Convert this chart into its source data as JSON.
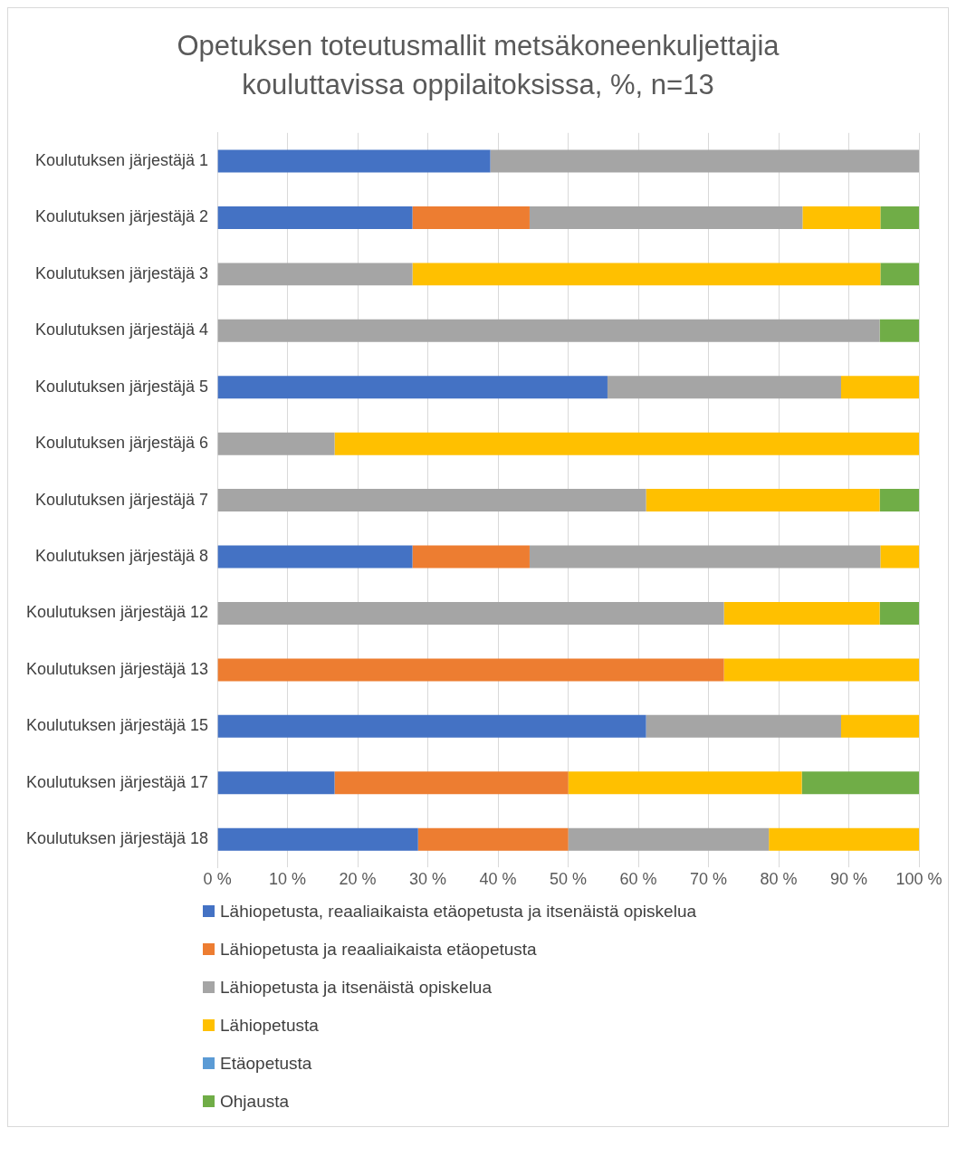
{
  "chart_data": {
    "type": "bar",
    "orientation": "horizontal",
    "stacked": true,
    "title": "Opetuksen toteutusmallit metsäkoneenkuljettajia kouluttavissa oppilaitoksissa, %, n=13",
    "categories": [
      "Koulutuksen järjestäjä 1",
      "Koulutuksen järjestäjä 2",
      "Koulutuksen järjestäjä 3",
      "Koulutuksen järjestäjä 4",
      "Koulutuksen järjestäjä 5",
      "Koulutuksen järjestäjä 6",
      "Koulutuksen järjestäjä 7",
      "Koulutuksen järjestäjä 8",
      "Koulutuksen järjestäjä 12",
      "Koulutuksen järjestäjä 13",
      "Koulutuksen järjestäjä 15",
      "Koulutuksen järjestäjä 17",
      "Koulutuksen järjestäjä 18"
    ],
    "series": [
      {
        "name": "Lähiopetusta, reaaliaikaista etäopetusta ja itsenäistä opiskelua",
        "color": "#4472c4",
        "values": [
          38.9,
          27.8,
          0,
          0,
          55.6,
          0,
          0,
          27.8,
          0,
          0,
          61.1,
          16.7,
          28.6
        ]
      },
      {
        "name": "Lähiopetusta ja reaaliaikaista etäopetusta",
        "color": "#ed7d31",
        "values": [
          0,
          16.7,
          0,
          0,
          0,
          0,
          0,
          16.7,
          0,
          72.2,
          0,
          33.3,
          21.4
        ]
      },
      {
        "name": "Lähiopetusta ja itsenäistä opiskelua",
        "color": "#a5a5a5",
        "values": [
          61.1,
          38.9,
          27.8,
          94.4,
          33.3,
          16.7,
          61.1,
          50.0,
          72.2,
          0,
          27.8,
          0,
          28.6
        ]
      },
      {
        "name": "Lähiopetusta",
        "color": "#ffc000",
        "values": [
          0,
          11.1,
          66.7,
          0,
          11.1,
          83.3,
          33.3,
          5.6,
          22.2,
          27.8,
          11.1,
          33.3,
          21.4
        ]
      },
      {
        "name": "Etäopetusta",
        "color": "#5b9bd5",
        "values": [
          0,
          0,
          0,
          0,
          0,
          0,
          0,
          0,
          0,
          0,
          0,
          0,
          0
        ]
      },
      {
        "name": "Ohjausta",
        "color": "#70ad47",
        "values": [
          0,
          5.6,
          5.6,
          5.6,
          0,
          0,
          5.6,
          0,
          5.6,
          0,
          0,
          16.7,
          0
        ]
      }
    ],
    "xlim": [
      0,
      100
    ],
    "xticks": [
      {
        "value": 0,
        "label": "0 %"
      },
      {
        "value": 10,
        "label": "10 %"
      },
      {
        "value": 20,
        "label": "20 %"
      },
      {
        "value": 30,
        "label": "30 %"
      },
      {
        "value": 40,
        "label": "40 %"
      },
      {
        "value": 50,
        "label": "50 %"
      },
      {
        "value": 60,
        "label": "60 %"
      },
      {
        "value": 70,
        "label": "70 %"
      },
      {
        "value": 80,
        "label": "80 %"
      },
      {
        "value": 90,
        "label": "90 %"
      },
      {
        "value": 100,
        "label": "100 %"
      }
    ],
    "grid": "x",
    "legend": "bottom"
  }
}
